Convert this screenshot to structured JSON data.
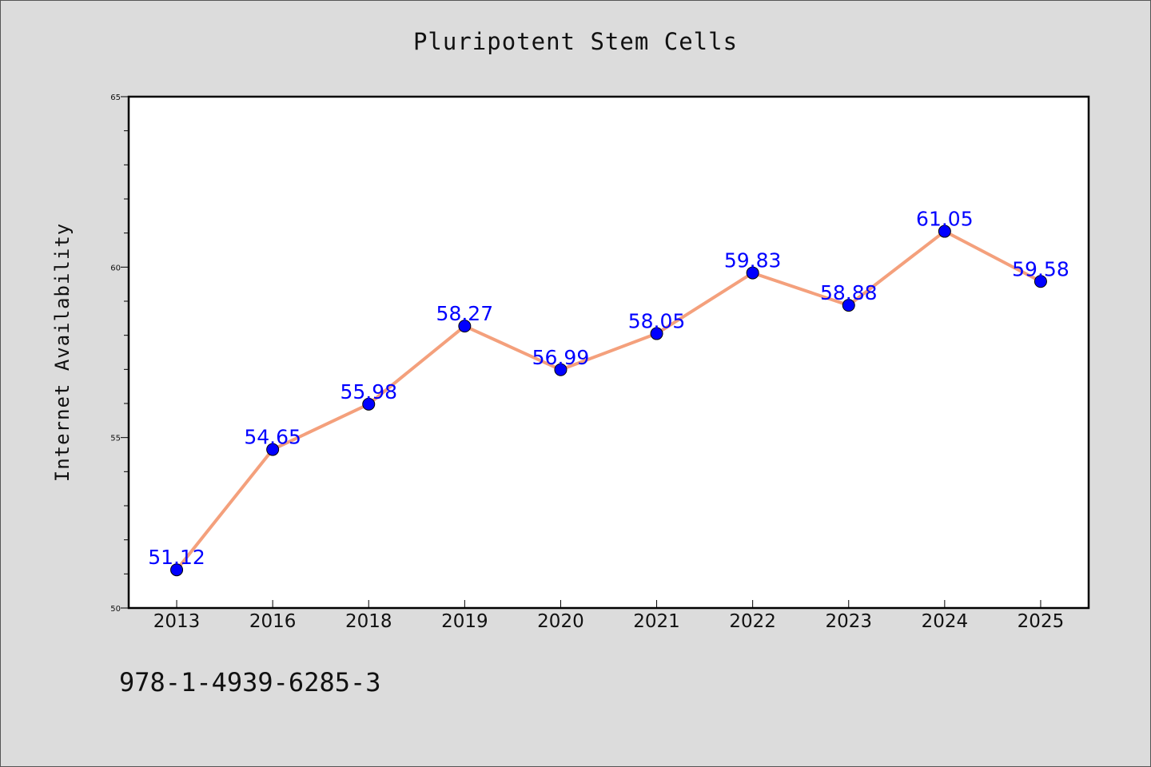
{
  "chart_data": {
    "type": "line",
    "title": "Pluripotent Stem Cells",
    "xlabel": "",
    "ylabel": "Internet Availability",
    "categories": [
      "2013",
      "2016",
      "2018",
      "2019",
      "2020",
      "2021",
      "2022",
      "2023",
      "2024",
      "2025"
    ],
    "series": [
      {
        "values": [
          51.12,
          54.65,
          55.98,
          58.27,
          56.99,
          58.05,
          59.83,
          58.88,
          61.05,
          59.58
        ]
      }
    ],
    "data_labels": [
      "51.12",
      "54.65",
      "55.98",
      "58.27",
      "56.99",
      "58.05",
      "59.83",
      "58.88",
      "61.05",
      "59.58"
    ],
    "ylim": [
      50,
      65
    ],
    "yticks": [
      50,
      55,
      60,
      65
    ],
    "grid": false,
    "colors": {
      "line": "#f4a07c",
      "marker": "#0000ff",
      "label": "#0000ff",
      "background": "#dcdcdc",
      "plot_background": "#ffffff"
    }
  },
  "footer_text": "978-1-4939-6285-3"
}
